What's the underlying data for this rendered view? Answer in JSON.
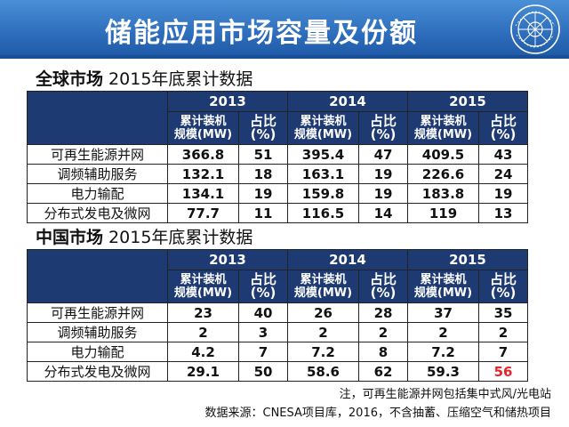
{
  "header": {
    "title": "储能应用市场容量及份额"
  },
  "global": {
    "title_bold": "全球市场",
    "title_rest": " 2015年底累计数据",
    "years": [
      "2013",
      "2014",
      "2015"
    ],
    "sub_capacity": "累计装机\n规模(MW)",
    "sub_share": "占比(%)",
    "rows": [
      {
        "label": "可再生能源并网",
        "values": [
          "366.8",
          "51",
          "395.4",
          "47",
          "409.5",
          "43"
        ]
      },
      {
        "label": "调频辅助服务",
        "values": [
          "132.1",
          "18",
          "163.1",
          "19",
          "226.6",
          "24"
        ]
      },
      {
        "label": "电力输配",
        "values": [
          "134.1",
          "19",
          "159.8",
          "19",
          "183.8",
          "19"
        ]
      },
      {
        "label": "分布式发电及微网",
        "values": [
          "77.7",
          "11",
          "116.5",
          "14",
          "119",
          "13"
        ]
      }
    ]
  },
  "china": {
    "title_bold": "中国市场",
    "title_rest": " 2015年底累计数据",
    "years": [
      "2013",
      "2014",
      "2015"
    ],
    "sub_capacity": "累计装机\n规模(MW)",
    "sub_share": "占比(%)",
    "rows": [
      {
        "label": "可再生能源并网",
        "values": [
          "23",
          "40",
          "26",
          "28",
          "37",
          "35"
        ]
      },
      {
        "label": "调频辅助服务",
        "values": [
          "2",
          "3",
          "2",
          "2",
          "2",
          "2"
        ]
      },
      {
        "label": "电力输配",
        "values": [
          "4.2",
          "7",
          "7.2",
          "8",
          "7.2",
          "7"
        ]
      },
      {
        "label": "分布式发电及微网",
        "values": [
          "29.1",
          "50",
          "58.6",
          "62",
          "59.3",
          "56"
        ]
      }
    ],
    "highlight_color": "#e8232b"
  },
  "footnote": {
    "line1": "注，可再生能源并网包括集中式风/光电站",
    "line2": "数据来源：CNESA项目库，2016，不含抽蓄、压缩空气和储热项目"
  },
  "colors": {
    "header": "#2f6fbd",
    "table_header": "#1e3a73"
  }
}
